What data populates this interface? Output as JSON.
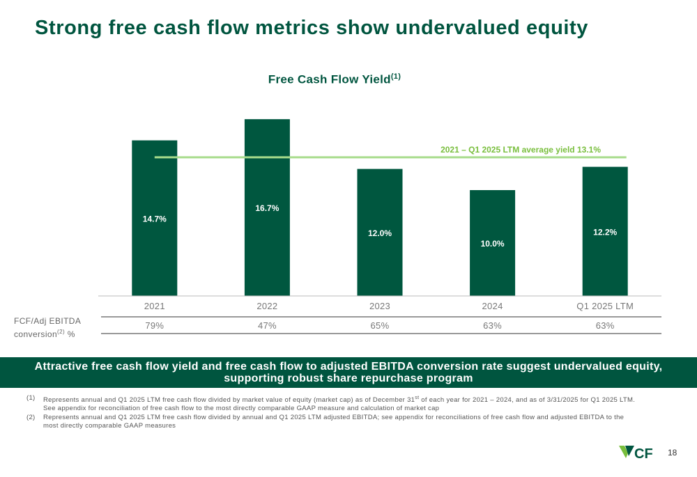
{
  "page": {
    "title": "Strong free cash flow metrics show undervalued equity",
    "page_number": "18"
  },
  "chart_data": {
    "type": "bar",
    "title": "Free Cash Flow Yield",
    "title_superscript": "(1)",
    "categories": [
      "2021",
      "2022",
      "2023",
      "2024",
      "Q1 2025 LTM"
    ],
    "series": [
      {
        "values": [
          14.7,
          16.7,
          12.0,
          10.0,
          12.2
        ],
        "color": "#00573f"
      }
    ],
    "data_labels": [
      "14.7%",
      "16.7%",
      "12.0%",
      "10.0%",
      "12.2%"
    ],
    "average_line": {
      "value": 13.1,
      "label": "2021 – Q1 2025 LTM average yield 13.1%",
      "color": "#a8dc8c",
      "label_color": "#78be3c"
    },
    "ylim": [
      0,
      17.5
    ],
    "grid": false,
    "xlabel": "",
    "ylabel": ""
  },
  "conversion": {
    "label_line1": "FCF/Adj EBITDA",
    "label_line2": "conversion",
    "label_sup": "(2)",
    "label_suffix": " %",
    "values": [
      "79%",
      "47%",
      "65%",
      "63%",
      "63%"
    ]
  },
  "banner": {
    "text": "Attractive free cash flow yield and free cash flow to adjusted EBITDA conversion rate suggest undervalued equity, supporting robust share repurchase program"
  },
  "footnotes": [
    {
      "num": "(1)",
      "text_before": "Represents annual and Q1 2025 LTM free cash flow divided by market value of equity (market cap) as of December 31",
      "sup": "st",
      "text_after": " of each year for 2021 – 2024, and as of 3/31/2025 for Q1 2025 LTM. See appendix for reconciliation of free cash flow to the most directly comparable GAAP measure and calculation of market cap"
    },
    {
      "num": "(2)",
      "text": "Represents annual and Q1 2025 LTM free cash flow divided by annual and Q1 2025 LTM adjusted EBITDA; see appendix for reconciliations of free cash flow and adjusted EBITDA to the most directly comparable GAAP measures"
    }
  ],
  "logo": {
    "text": "CF",
    "icon": "cf-industries-logo"
  },
  "colors": {
    "brand_dark": "#00553f",
    "brand_light": "#78be3c"
  }
}
